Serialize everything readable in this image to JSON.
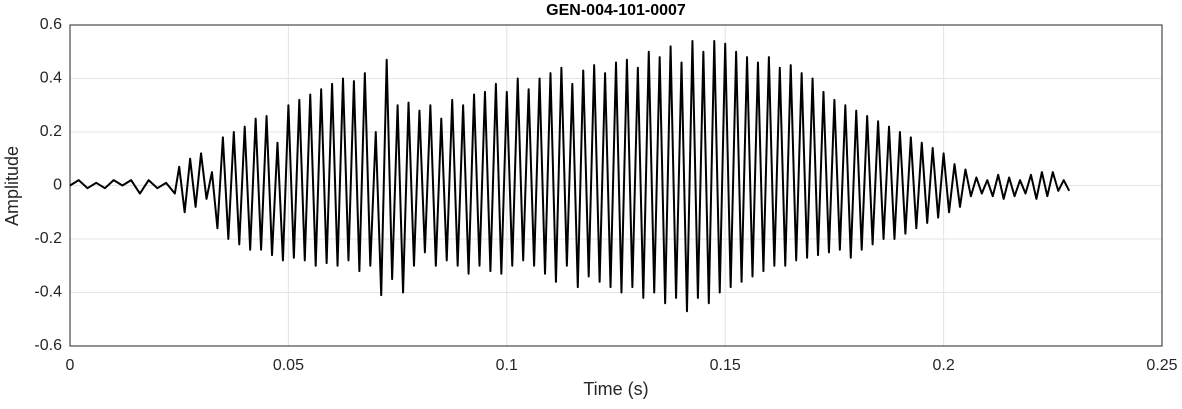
{
  "chart_data": {
    "type": "line",
    "title": "GEN-004-101-0007",
    "x_label": "Time (s)",
    "y_label": "Amplitude",
    "grid": true,
    "xlim": [
      0,
      0.25
    ],
    "ylim": [
      -0.6,
      0.6
    ],
    "xticks": [
      0,
      0.05,
      0.1,
      0.15,
      0.2,
      0.25
    ],
    "yticks": [
      -0.6,
      -0.4,
      -0.2,
      0,
      0.2,
      0.4,
      0.6
    ],
    "x": [
      0,
      0.002,
      0.004,
      0.006,
      0.008,
      0.01,
      0.012,
      0.014,
      0.016,
      0.018,
      0.02,
      0.022,
      0.024,
      0.025,
      0.02625,
      0.0275,
      0.02875,
      0.03,
      0.03125,
      0.0325,
      0.03375,
      0.035,
      0.03625,
      0.0375,
      0.03875,
      0.04,
      0.04125,
      0.0425,
      0.04375,
      0.045,
      0.04625,
      0.0475,
      0.04875,
      0.05,
      0.05125,
      0.0525,
      0.05375,
      0.055,
      0.05625,
      0.0575,
      0.05875,
      0.06,
      0.06125,
      0.0625,
      0.06375,
      0.065,
      0.06625,
      0.0675,
      0.06875,
      0.07,
      0.07125,
      0.0725,
      0.07375,
      0.075,
      0.07625,
      0.0775,
      0.07875,
      0.08,
      0.08125,
      0.0825,
      0.08375,
      0.085,
      0.08625,
      0.0875,
      0.08875,
      0.09,
      0.09125,
      0.0925,
      0.09375,
      0.095,
      0.09625,
      0.0975,
      0.09875,
      0.1,
      0.10125,
      0.1025,
      0.10375,
      0.105,
      0.10625,
      0.1075,
      0.10875,
      0.11,
      0.11125,
      0.1125,
      0.11375,
      0.115,
      0.11625,
      0.1175,
      0.11875,
      0.12,
      0.12125,
      0.1225,
      0.12375,
      0.125,
      0.12625,
      0.1275,
      0.12875,
      0.13,
      0.13125,
      0.1325,
      0.13375,
      0.135,
      0.13625,
      0.1375,
      0.13875,
      0.14,
      0.14125,
      0.1425,
      0.14375,
      0.145,
      0.14625,
      0.1475,
      0.14875,
      0.15,
      0.15125,
      0.1525,
      0.15375,
      0.155,
      0.15625,
      0.1575,
      0.15875,
      0.16,
      0.16125,
      0.1625,
      0.16375,
      0.165,
      0.16625,
      0.1675,
      0.16875,
      0.17,
      0.17125,
      0.1725,
      0.17375,
      0.175,
      0.17625,
      0.1775,
      0.17875,
      0.18,
      0.18125,
      0.1825,
      0.18375,
      0.185,
      0.18625,
      0.1875,
      0.18875,
      0.19,
      0.19125,
      0.1925,
      0.19375,
      0.195,
      0.19625,
      0.1975,
      0.19875,
      0.2,
      0.20125,
      0.2025,
      0.20375,
      0.205,
      0.20625,
      0.2075,
      0.20875,
      0.21,
      0.21125,
      0.2125,
      0.21375,
      0.215,
      0.21625,
      0.2175,
      0.21875,
      0.22,
      0.22125,
      0.2225,
      0.22375,
      0.225,
      0.22625,
      0.2275,
      0.22875
    ],
    "series": [
      {
        "color": "#000000",
        "values": [
          0,
          0.02,
          -0.01,
          0.01,
          -0.01,
          0.02,
          0,
          0.02,
          -0.03,
          0.02,
          -0.01,
          0.01,
          -0.03,
          0.07,
          -0.1,
          0.1,
          -0.08,
          0.12,
          -0.05,
          0.05,
          -0.16,
          0.18,
          -0.2,
          0.2,
          -0.22,
          0.22,
          -0.24,
          0.25,
          -0.24,
          0.26,
          -0.26,
          0.16,
          -0.28,
          0.3,
          -0.27,
          0.32,
          -0.28,
          0.34,
          -0.3,
          0.36,
          -0.29,
          0.38,
          -0.3,
          0.4,
          -0.28,
          0.39,
          -0.32,
          0.42,
          -0.3,
          0.2,
          -0.41,
          0.47,
          -0.35,
          0.3,
          -0.4,
          0.31,
          -0.3,
          0.28,
          -0.25,
          0.3,
          -0.3,
          0.25,
          -0.28,
          0.32,
          -0.3,
          0.3,
          -0.33,
          0.34,
          -0.3,
          0.35,
          -0.32,
          0.38,
          -0.33,
          0.35,
          -0.3,
          0.4,
          -0.28,
          0.36,
          -0.3,
          0.4,
          -0.33,
          0.42,
          -0.36,
          0.44,
          -0.3,
          0.38,
          -0.38,
          0.43,
          -0.34,
          0.45,
          -0.36,
          0.42,
          -0.38,
          0.46,
          -0.4,
          0.47,
          -0.38,
          0.44,
          -0.42,
          0.5,
          -0.4,
          0.48,
          -0.44,
          0.52,
          -0.42,
          0.46,
          -0.47,
          0.54,
          -0.42,
          0.5,
          -0.44,
          0.54,
          -0.4,
          0.53,
          -0.38,
          0.5,
          -0.36,
          0.48,
          -0.34,
          0.46,
          -0.32,
          0.48,
          -0.3,
          0.44,
          -0.3,
          0.45,
          -0.28,
          0.42,
          -0.27,
          0.4,
          -0.26,
          0.35,
          -0.25,
          0.32,
          -0.24,
          0.3,
          -0.27,
          0.28,
          -0.24,
          0.26,
          -0.22,
          0.24,
          -0.2,
          0.22,
          -0.2,
          0.2,
          -0.18,
          0.18,
          -0.16,
          0.16,
          -0.14,
          0.14,
          -0.12,
          0.12,
          -0.1,
          0.08,
          -0.08,
          0.06,
          -0.04,
          0.03,
          -0.03,
          0.02,
          -0.04,
          0.04,
          -0.05,
          0.03,
          -0.04,
          0.02,
          -0.03,
          0.04,
          -0.05,
          0.05,
          -0.04,
          0.05,
          -0.02,
          0.02,
          -0.02
        ]
      }
    ]
  }
}
